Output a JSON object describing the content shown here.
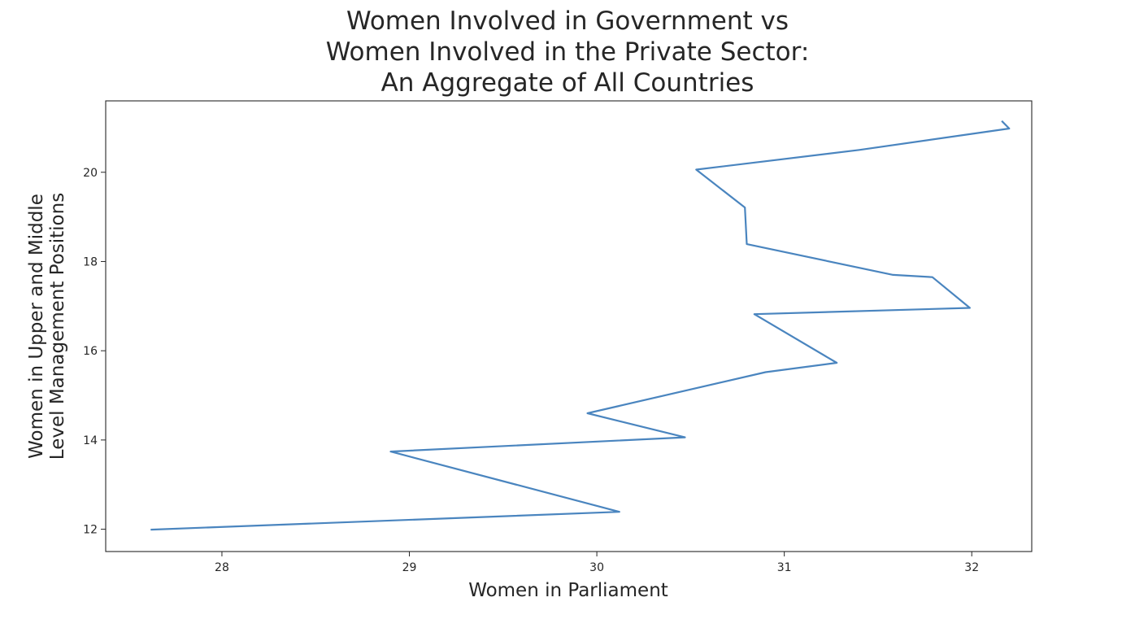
{
  "chart_data": {
    "type": "line",
    "title": [
      "Women Involved in Government vs",
      "Women Involved in the Private Sector:",
      "An Aggregate of All Countries"
    ],
    "xlabel": "Women in Parliament",
    "ylabel": [
      "Women in Upper and Middle",
      "Level Management Positions"
    ],
    "xlim": [
      27.38,
      32.32
    ],
    "ylim": [
      11.5,
      21.6
    ],
    "xticks": [
      28,
      29,
      30,
      31,
      32
    ],
    "yticks": [
      12,
      14,
      16,
      18,
      20
    ],
    "grid": false,
    "series": [
      {
        "color": "#4a85bf",
        "x": [
          27.62,
          30.12,
          28.9,
          30.47,
          29.95,
          30.9,
          31.28,
          30.84,
          31.99,
          31.79,
          31.58,
          30.8,
          30.79,
          30.53,
          31.4,
          32.2,
          32.16
        ],
        "y": [
          11.99,
          12.39,
          13.74,
          14.06,
          14.6,
          15.52,
          15.73,
          16.82,
          16.96,
          17.65,
          17.7,
          18.39,
          19.21,
          20.06,
          20.5,
          20.98,
          21.15
        ]
      }
    ]
  }
}
